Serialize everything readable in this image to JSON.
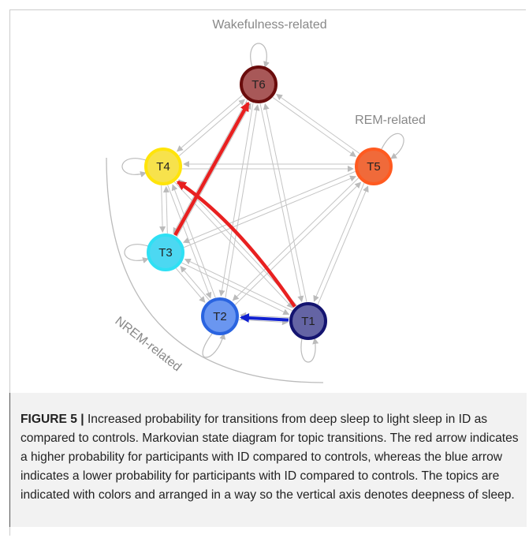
{
  "groups": {
    "wake": "Wakefulness-related",
    "rem": "REM-related",
    "nrem": "NREM-related"
  },
  "nodes": [
    {
      "label": "T1"
    },
    {
      "label": "T2"
    },
    {
      "label": "T3"
    },
    {
      "label": "T4"
    },
    {
      "label": "T5"
    },
    {
      "label": "T6"
    }
  ],
  "caption": {
    "label": "FIGURE 5 |",
    "text": "Increased probability for transitions from deep sleep to light sleep in ID as compared to controls. Markovian state diagram for topic transitions. The red arrow indicates a higher probability for participants with ID compared to controls, whereas the blue arrow indicates a lower probability for participants with ID compared to controls. The topics are indicated with colors and arranged in a way so the vertical axis denotes deepness of sleep."
  }
}
